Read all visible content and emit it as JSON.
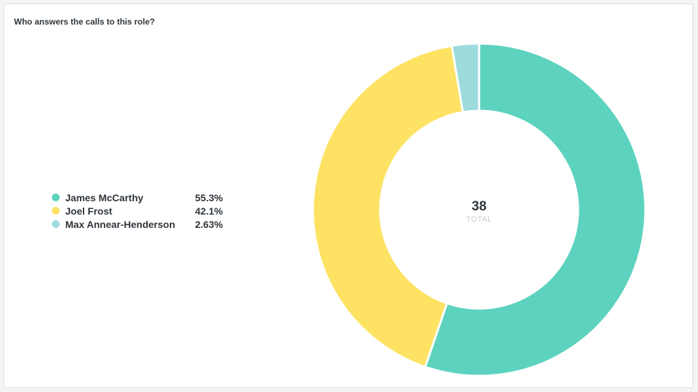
{
  "card": {
    "title": "Who answers the calls to this role?"
  },
  "chart_data": {
    "type": "pie",
    "donut": true,
    "title": "Who answers the calls to this role?",
    "total_value": "38",
    "total_label": "TOTAL",
    "legend_placement": "left",
    "categories": [
      "James McCarthy",
      "Joel Frost",
      "Max Annear-Henderson"
    ],
    "values": [
      21,
      16,
      1
    ],
    "percent_labels": [
      "55.3%",
      "42.1%",
      "2.63%"
    ],
    "colors": [
      "#5dd3bf",
      "#fee263",
      "#9ddcdc"
    ]
  }
}
